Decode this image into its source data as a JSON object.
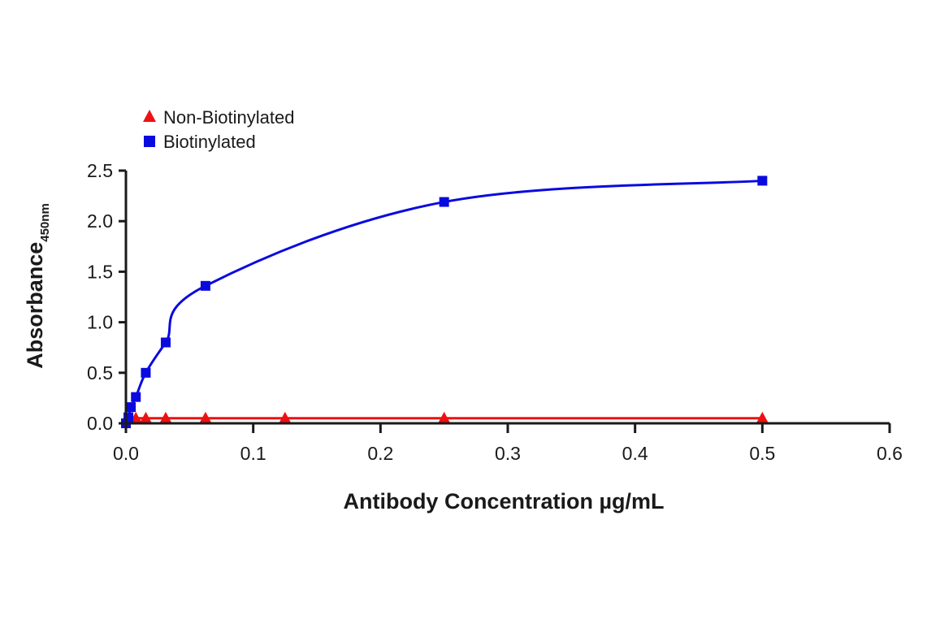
{
  "chart_data": {
    "type": "line",
    "title": "",
    "xlabel": "Antibody Concentration µg/mL",
    "ylabel": "Absorbance",
    "ylabel_subscript": "450nm",
    "xlim": [
      0,
      0.6
    ],
    "ylim": [
      0,
      2.5
    ],
    "xticks": [
      0.0,
      0.1,
      0.2,
      0.3,
      0.4,
      0.5,
      0.6
    ],
    "xtick_labels": [
      "0.0",
      "0.1",
      "0.2",
      "0.3",
      "0.4",
      "0.5",
      "0.6"
    ],
    "yticks": [
      0.0,
      0.5,
      1.0,
      1.5,
      2.0,
      2.5
    ],
    "ytick_labels": [
      "0.0",
      "0.5",
      "1.0",
      "1.5",
      "2.0",
      "2.5"
    ],
    "grid": false,
    "legend_position": "top-left",
    "series": [
      {
        "name": "Non-Biotinylated",
        "marker": "triangle",
        "color": "#ee1111",
        "x": [
          0.0,
          0.0039,
          0.0078,
          0.0156,
          0.03125,
          0.0625,
          0.125,
          0.25,
          0.5
        ],
        "y": [
          0.03,
          0.04,
          0.05,
          0.05,
          0.05,
          0.05,
          0.05,
          0.05,
          0.05
        ]
      },
      {
        "name": "Biotinylated",
        "marker": "square",
        "color": "#0a0adf",
        "x": [
          0.0,
          0.00195,
          0.0039,
          0.0078,
          0.0156,
          0.03125,
          0.0625,
          0.25,
          0.5
        ],
        "y": [
          0.0,
          0.06,
          0.16,
          0.26,
          0.5,
          0.8,
          1.36,
          2.19,
          2.4
        ]
      }
    ]
  }
}
